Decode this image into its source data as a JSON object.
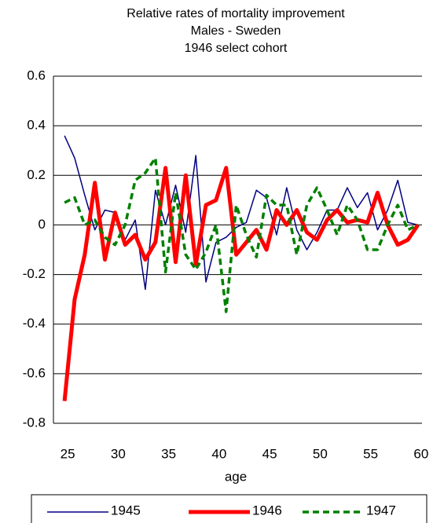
{
  "chart_data": {
    "type": "line",
    "title": [
      "Relative rates of mortality improvement",
      "Males - Sweden",
      "1946 select cohort"
    ],
    "x_label": "age",
    "x": [
      25,
      26,
      27,
      28,
      29,
      30,
      31,
      32,
      33,
      34,
      35,
      36,
      37,
      38,
      39,
      40,
      41,
      42,
      43,
      44,
      45,
      46,
      47,
      48,
      49,
      50,
      51,
      52,
      53,
      54,
      55,
      56,
      57,
      58,
      59,
      60
    ],
    "xlim": [
      23.9,
      60.4
    ],
    "xticks": [
      25,
      30,
      35,
      40,
      45,
      50,
      55,
      60
    ],
    "ylim": [
      -0.8,
      0.6
    ],
    "yticks": [
      {
        "value": -0.8,
        "label": "-0.8"
      },
      {
        "value": -0.6,
        "label": "-0.6"
      },
      {
        "value": -0.4,
        "label": "-0.4"
      },
      {
        "value": -0.2,
        "label": "-0.2"
      },
      0,
      {
        "value": 0.2,
        "label": "0.2"
      },
      {
        "value": 0.4,
        "label": "0.4"
      },
      {
        "value": 0.6,
        "label": "0.6"
      }
    ],
    "grid": true,
    "legend": "bottom",
    "series": [
      {
        "name": "1945",
        "color": "#000080",
        "linewidth": 1.5,
        "linestyle": "solid",
        "values": [
          0.36,
          0.27,
          0.12,
          -0.02,
          0.06,
          0.05,
          -0.06,
          0.02,
          -0.26,
          0.14,
          0.0,
          0.16,
          -0.03,
          0.28,
          -0.23,
          -0.07,
          -0.05,
          -0.01,
          0.01,
          0.14,
          0.11,
          -0.04,
          0.15,
          -0.02,
          -0.1,
          -0.03,
          0.06,
          0.06,
          0.15,
          0.07,
          0.13,
          -0.02,
          0.06,
          0.18,
          0.01,
          0.0
        ]
      },
      {
        "name": "1946",
        "color": "#ff0000",
        "linewidth": 5,
        "linestyle": "solid",
        "values": [
          -0.71,
          -0.3,
          -0.12,
          0.17,
          -0.14,
          0.05,
          -0.08,
          -0.04,
          -0.14,
          -0.07,
          0.23,
          -0.15,
          0.2,
          -0.16,
          0.08,
          0.1,
          0.23,
          -0.12,
          -0.07,
          -0.02,
          -0.1,
          0.06,
          0.0,
          0.06,
          -0.03,
          -0.06,
          0.02,
          0.06,
          0.01,
          0.02,
          0.01,
          0.13,
          0.0,
          -0.08,
          -0.06,
          0.0
        ]
      },
      {
        "name": "1947",
        "color": "#008000",
        "linewidth": 3.5,
        "linestyle": "dashed",
        "values": [
          0.09,
          0.11,
          0.0,
          0.02,
          -0.05,
          -0.08,
          0.0,
          0.18,
          0.21,
          0.27,
          -0.19,
          0.13,
          -0.12,
          -0.18,
          -0.11,
          0.0,
          -0.35,
          0.08,
          -0.04,
          -0.13,
          0.12,
          0.08,
          0.08,
          -0.12,
          0.08,
          0.15,
          0.06,
          -0.04,
          0.08,
          0.02,
          -0.1,
          -0.1,
          0.0,
          0.08,
          -0.02,
          0.0
        ]
      }
    ]
  }
}
